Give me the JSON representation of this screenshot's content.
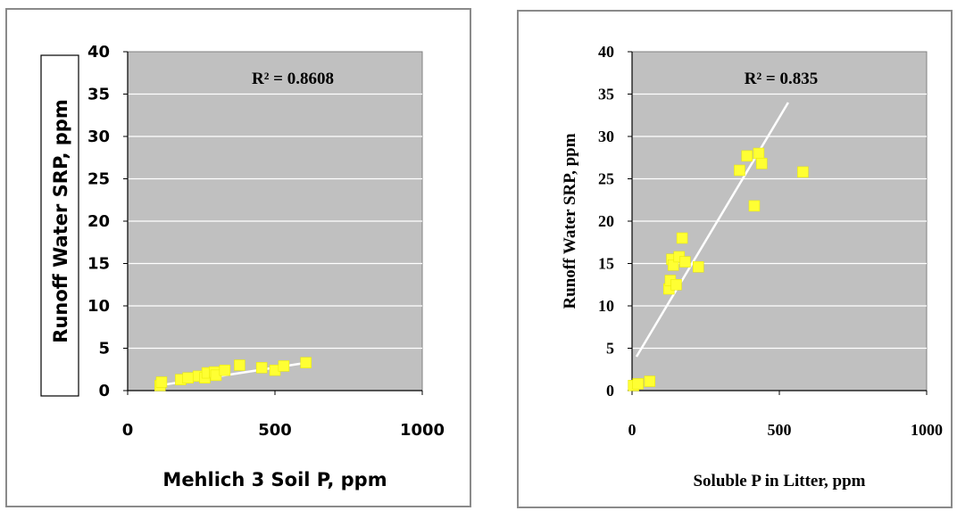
{
  "chart_data": [
    {
      "type": "scatter",
      "title": "",
      "xlabel": "Mehlich 3 Soil P, ppm",
      "ylabel": "Runoff Water SRP, ppm",
      "xlim": [
        0,
        1000
      ],
      "ylim": [
        0,
        40
      ],
      "xticks": [
        "0",
        "500",
        "1000"
      ],
      "yticks": [
        "0",
        "5",
        "10",
        "15",
        "20",
        "25",
        "30",
        "35",
        "40"
      ],
      "grid": true,
      "annotation": "R² = 0.8608",
      "points": [
        {
          "x": 110,
          "y": 0.6
        },
        {
          "x": 115,
          "y": 1.0
        },
        {
          "x": 180,
          "y": 1.3
        },
        {
          "x": 205,
          "y": 1.5
        },
        {
          "x": 240,
          "y": 1.7
        },
        {
          "x": 262,
          "y": 1.5
        },
        {
          "x": 270,
          "y": 2.1
        },
        {
          "x": 295,
          "y": 2.2
        },
        {
          "x": 300,
          "y": 1.8
        },
        {
          "x": 330,
          "y": 2.4
        },
        {
          "x": 380,
          "y": 3.0
        },
        {
          "x": 455,
          "y": 2.7
        },
        {
          "x": 500,
          "y": 2.4
        },
        {
          "x": 530,
          "y": 2.9
        },
        {
          "x": 605,
          "y": 3.3
        }
      ],
      "trendline": [
        {
          "x": 105,
          "y": 0.6
        },
        {
          "x": 610,
          "y": 3.3
        }
      ]
    },
    {
      "type": "scatter",
      "title": "",
      "xlabel": "Soluble P in Litter, ppm",
      "ylabel": "Runoff Water SRP, ppm",
      "xlim": [
        0,
        1000
      ],
      "ylim": [
        0,
        40
      ],
      "xticks": [
        "0",
        "500",
        "1000"
      ],
      "yticks": [
        "0",
        "5",
        "10",
        "15",
        "20",
        "25",
        "30",
        "35",
        "40"
      ],
      "grid": true,
      "annotation": "R² = 0.835",
      "points": [
        {
          "x": 5,
          "y": 0.6
        },
        {
          "x": 20,
          "y": 0.8
        },
        {
          "x": 60,
          "y": 1.1
        },
        {
          "x": 125,
          "y": 12.0
        },
        {
          "x": 130,
          "y": 13.0
        },
        {
          "x": 135,
          "y": 15.5
        },
        {
          "x": 140,
          "y": 14.8
        },
        {
          "x": 150,
          "y": 12.5
        },
        {
          "x": 160,
          "y": 15.8
        },
        {
          "x": 170,
          "y": 18.0
        },
        {
          "x": 180,
          "y": 15.2
        },
        {
          "x": 225,
          "y": 14.6
        },
        {
          "x": 365,
          "y": 26.0
        },
        {
          "x": 390,
          "y": 27.7
        },
        {
          "x": 415,
          "y": 21.8
        },
        {
          "x": 430,
          "y": 28.0
        },
        {
          "x": 440,
          "y": 26.8
        },
        {
          "x": 580,
          "y": 25.8
        }
      ],
      "trendline": [
        {
          "x": 15,
          "y": 4.0
        },
        {
          "x": 530,
          "y": 34.0
        }
      ]
    }
  ]
}
